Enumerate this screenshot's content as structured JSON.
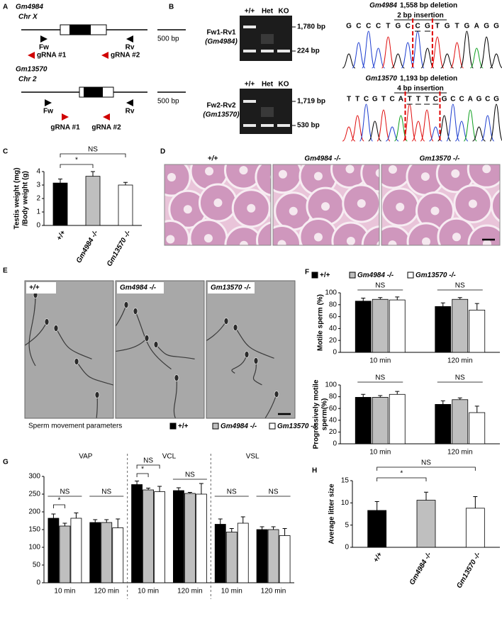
{
  "panel_labels": [
    "A",
    "B",
    "C",
    "D",
    "E",
    "F",
    "G",
    "H"
  ],
  "panel_a": {
    "genes": [
      {
        "name": "Gm4984",
        "chromosome": "Chr X",
        "forward": "Fw",
        "reverse": "Rv",
        "grna1": "gRNA #1",
        "grna2": "gRNA #2",
        "scale": "500 bp"
      },
      {
        "name": "Gm13570",
        "chromosome": "Chr 2",
        "forward": "Fw",
        "reverse": "Rv",
        "grna1": "gRNA #1",
        "grna2": "gRNA #2",
        "scale": "500 bp"
      }
    ]
  },
  "panel_b": {
    "gels": [
      {
        "lanes": [
          "+/+",
          "Het",
          "KO"
        ],
        "primer": "Fw1-Rv1",
        "gene": "(Gm4984)",
        "bands": [
          "1,780 bp",
          "224 bp"
        ],
        "deletion_gene": "Gm4984",
        "deletion": "1,558 bp deletion",
        "insertion": "2 bp insertion",
        "sequence": [
          "G",
          "C",
          "C",
          "C",
          "T",
          "G",
          "C",
          "C",
          "G",
          "T",
          "G",
          "T",
          "G",
          "A",
          "G",
          "G"
        ]
      },
      {
        "lanes": [
          "+/+",
          "Het",
          "KO"
        ],
        "primer": "Fw2-Rv2",
        "gene": "(Gm13570)",
        "bands": [
          "1,719 bp",
          "530 bp"
        ],
        "deletion_gene": "Gm13570",
        "deletion": "1,193 bp deletion",
        "insertion": "4 bp insertion",
        "sequence": [
          "T",
          "T",
          "C",
          "G",
          "T",
          "C",
          "A",
          "T",
          "T",
          "T",
          "C",
          "G",
          "C",
          "C",
          "A",
          "G",
          "C",
          "G"
        ]
      }
    ]
  },
  "panel_d": {
    "labels": [
      "+/+",
      "Gm4984 -/-",
      "Gm13570 -/-"
    ]
  },
  "panel_e": {
    "labels": [
      "+/+",
      "Gm4984 -/-",
      "Gm13570 -/-"
    ]
  },
  "chart_data": [
    {
      "type": "bar",
      "ylabel": [
        "Testis weight (mg)",
        "/Body weight (g)"
      ],
      "categories": [
        "+/+",
        "Gm4984 -/-",
        "Gm13570 -/-"
      ],
      "values": [
        3.15,
        3.65,
        3
      ],
      "errors": [
        0.3,
        0.35,
        0.2
      ],
      "colors": [
        "#000000",
        "#bfbfbf",
        "#ffffff"
      ],
      "ylim": [
        0,
        4
      ],
      "yticks": [
        0,
        1,
        2,
        3,
        4
      ],
      "annotations": [
        "*",
        "NS"
      ]
    },
    {
      "type": "bar",
      "series": [
        {
          "name": "+/+",
          "color": "#000000"
        },
        {
          "name": "Gm4984 -/-",
          "color": "#bfbfbf"
        },
        {
          "name": "Gm13570 -/-",
          "color": "#ffffff"
        }
      ],
      "subplots": [
        {
          "ylabel": [
            "Motile sperm (%)"
          ],
          "categories": [
            "10 min",
            "120 min"
          ],
          "values": [
            [
              86,
              77
            ],
            [
              89,
              89
            ],
            [
              88,
              71
            ]
          ],
          "errors": [
            [
              5,
              6
            ],
            [
              3,
              3
            ],
            [
              5,
              11
            ]
          ],
          "ylim": [
            0,
            100
          ],
          "yticks": [
            0,
            20,
            40,
            60,
            80,
            100
          ],
          "annotations": [
            "NS",
            "NS"
          ]
        },
        {
          "ylabel": [
            "Progressively motile",
            "sperm(%)"
          ],
          "categories": [
            "10 min",
            "120 min"
          ],
          "values": [
            [
              79,
              67
            ],
            [
              79,
              75
            ],
            [
              84,
              53
            ]
          ],
          "errors": [
            [
              5,
              6
            ],
            [
              3,
              3
            ],
            [
              5,
              11
            ]
          ],
          "ylim": [
            0,
            100
          ],
          "yticks": [
            0,
            20,
            40,
            60,
            80,
            100
          ],
          "annotations": [
            "NS",
            "NS"
          ]
        }
      ]
    },
    {
      "type": "bar",
      "title": "Sperm movement parameters",
      "groups": [
        "VAP",
        "VCL",
        "VSL"
      ],
      "categories": [
        "10 min",
        "120 min",
        "10 min",
        "120 min",
        "10 min",
        "120 min"
      ],
      "series": [
        {
          "name": "+/+",
          "color": "#000000",
          "values": [
            182,
            170,
            277,
            260,
            165,
            150
          ],
          "errors": [
            12,
            8,
            10,
            8,
            15,
            8
          ]
        },
        {
          "name": "Gm4984 -/-",
          "color": "#bfbfbf",
          "values": [
            160,
            170,
            262,
            252,
            143,
            150
          ],
          "errors": [
            8,
            8,
            5,
            3,
            10,
            8
          ]
        },
        {
          "name": "Gm13570 -/-",
          "color": "#ffffff",
          "values": [
            182,
            155,
            257,
            250,
            168,
            133
          ],
          "errors": [
            15,
            25,
            15,
            30,
            18,
            20
          ]
        }
      ],
      "ylim": [
        0,
        300
      ],
      "yticks": [
        0,
        50,
        100,
        150,
        200,
        250,
        300
      ],
      "annotations": [
        "NS",
        "*",
        "NS",
        "NS",
        "*",
        "NS",
        "NS",
        "NS"
      ]
    },
    {
      "type": "bar",
      "ylabel": [
        "Average litter size"
      ],
      "categories": [
        "+/+",
        "Gm4984 -/-",
        "Gm13570 -/-"
      ],
      "values": [
        8.3,
        10.6,
        8.8
      ],
      "errors": [
        2,
        1.8,
        2.6
      ],
      "colors": [
        "#000000",
        "#bfbfbf",
        "#ffffff"
      ],
      "ylim": [
        0,
        15
      ],
      "yticks": [
        0,
        5,
        10,
        15
      ],
      "annotations": [
        "*",
        "NS"
      ]
    }
  ]
}
